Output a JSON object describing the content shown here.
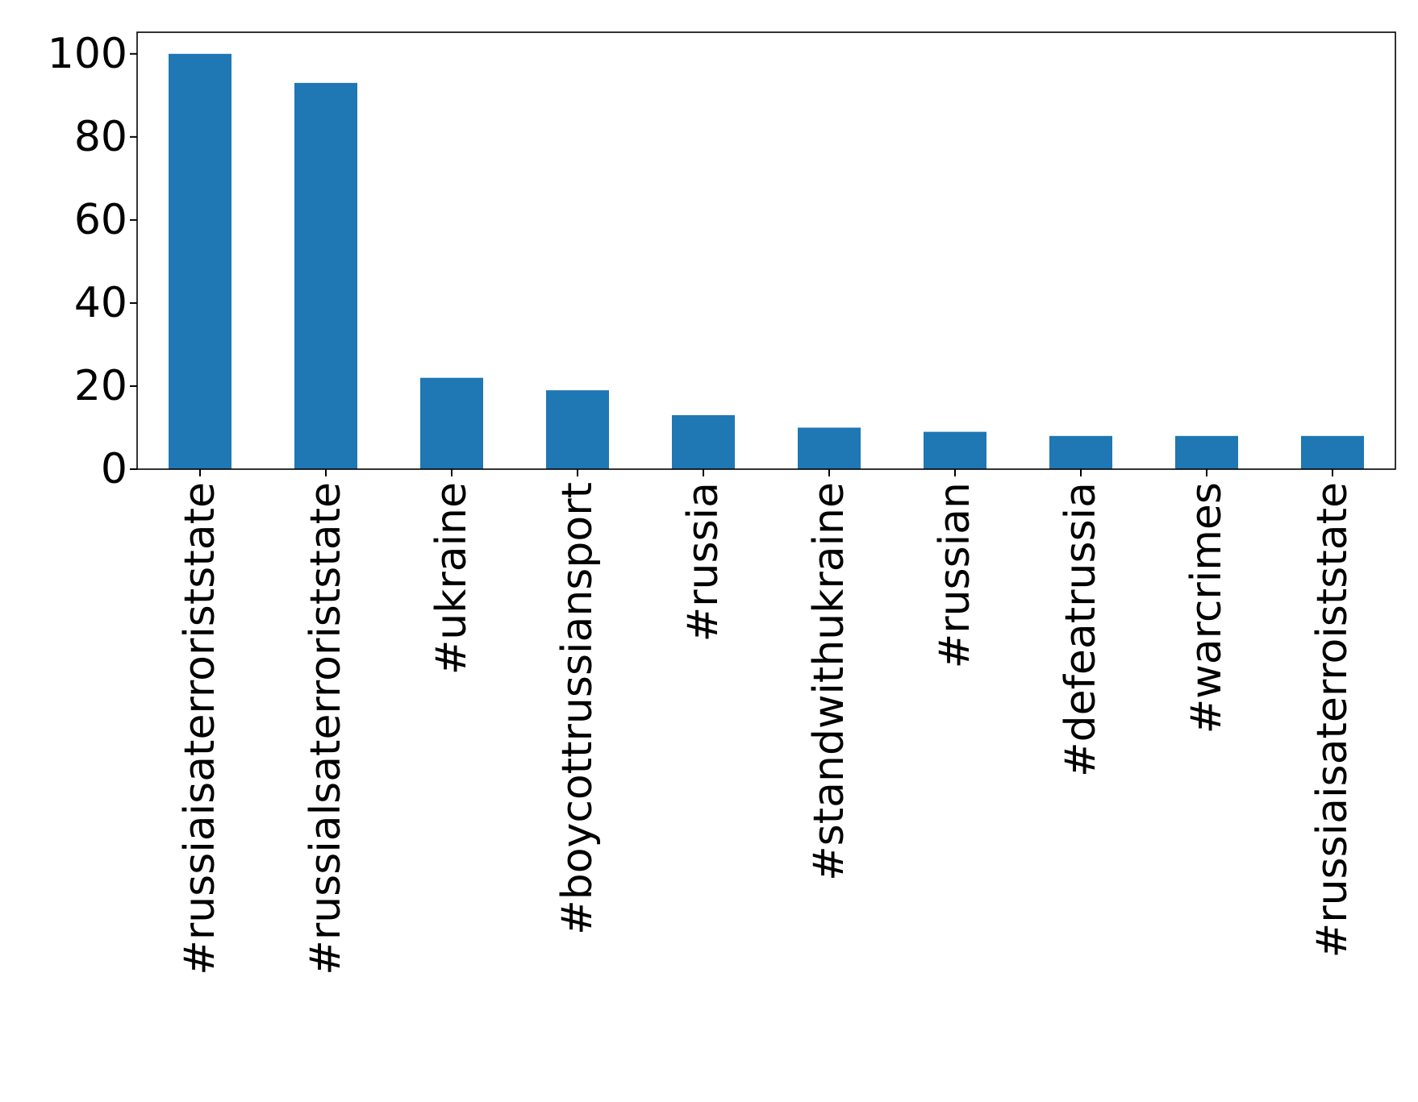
{
  "chart_data": {
    "type": "bar",
    "title": "",
    "xlabel": "",
    "ylabel": "",
    "categories": [
      "#russiaisaterroriststate",
      "#russialsaterroriststate",
      "#ukraine",
      "#boycottrussiansport",
      "#russia",
      "#standwithukraine",
      "#russian",
      "#defeatrussia",
      "#warcrimes",
      "#russiaisaterroiststate"
    ],
    "values": [
      100,
      93,
      22,
      19,
      13,
      10,
      9,
      8,
      8,
      8
    ],
    "ylim": [
      0,
      105.2
    ],
    "yticks": [
      0,
      20,
      40,
      60,
      80,
      100
    ],
    "grid": false,
    "legend": "none",
    "bar_color": "#1f77b4",
    "axis_color": "#000000"
  }
}
